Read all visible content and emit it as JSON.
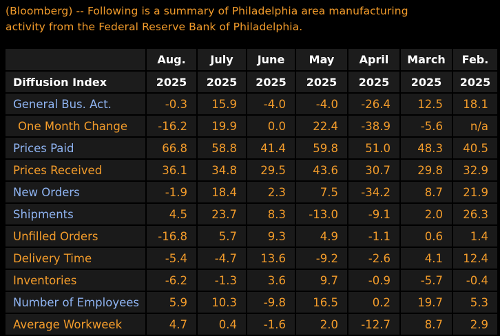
{
  "intro": {
    "line1": "(Bloomberg) -- Following is a summary of Philadelphia area manufacturing",
    "line2": "activity from the Federal Reserve Bank of Philadelphia."
  },
  "table": {
    "corner_label": "Diffusion Index",
    "columns": [
      {
        "month": "Aug.",
        "year": "2025"
      },
      {
        "month": "July",
        "year": "2025"
      },
      {
        "month": "June",
        "year": "2025"
      },
      {
        "month": "May",
        "year": "2025"
      },
      {
        "month": "April",
        "year": "2025"
      },
      {
        "month": "March",
        "year": "2025"
      },
      {
        "month": "Feb.",
        "year": "2025"
      }
    ],
    "rows": [
      {
        "label": "General Bus. Act.",
        "label_color": "#8fb4f2",
        "values": [
          "-0.3",
          "15.9",
          "-4.0",
          "-4.0",
          "-26.4",
          "12.5",
          "18.1"
        ]
      },
      {
        "label": "One Month Change",
        "label_color": "#f39c2b",
        "values": [
          "-16.2",
          "19.9",
          "0.0",
          "22.4",
          "-38.9",
          "-5.6",
          "n/a"
        ]
      },
      {
        "label": "Prices Paid",
        "label_color": "#8fb4f2",
        "values": [
          "66.8",
          "58.8",
          "41.4",
          "59.8",
          "51.0",
          "48.3",
          "40.5"
        ]
      },
      {
        "label": "Prices Received",
        "label_color": "#f39c2b",
        "values": [
          "36.1",
          "34.8",
          "29.5",
          "43.6",
          "30.7",
          "29.8",
          "32.9"
        ]
      },
      {
        "label": "New Orders",
        "label_color": "#8fb4f2",
        "values": [
          "-1.9",
          "18.4",
          "2.3",
          "7.5",
          "-34.2",
          "8.7",
          "21.9"
        ]
      },
      {
        "label": "Shipments",
        "label_color": "#8fb4f2",
        "values": [
          "4.5",
          "23.7",
          "8.3",
          "-13.0",
          "-9.1",
          "2.0",
          "26.3"
        ]
      },
      {
        "label": "Unfilled Orders",
        "label_color": "#f39c2b",
        "values": [
          "-16.8",
          "5.7",
          "9.3",
          "4.9",
          "-1.1",
          "0.6",
          "1.4"
        ]
      },
      {
        "label": "Delivery Time",
        "label_color": "#f39c2b",
        "values": [
          "-5.4",
          "-4.7",
          "13.6",
          "-9.2",
          "-2.6",
          "4.1",
          "12.4"
        ]
      },
      {
        "label": "Inventories",
        "label_color": "#f39c2b",
        "values": [
          "-6.2",
          "-1.3",
          "3.6",
          "9.7",
          "-0.9",
          "-5.7",
          "-0.4"
        ]
      },
      {
        "label": "Number of Employees",
        "label_color": "#8fb4f2",
        "values": [
          "5.9",
          "10.3",
          "-9.8",
          "16.5",
          "0.2",
          "19.7",
          "5.3"
        ]
      },
      {
        "label": "Average Workweek",
        "label_color": "#f39c2b",
        "values": [
          "4.7",
          "0.4",
          "-1.6",
          "2.0",
          "-12.7",
          "8.7",
          "2.9"
        ]
      }
    ]
  },
  "colors": {
    "background": "#000000",
    "text_orange": "#f39c2b",
    "link_blue": "#8fb4f2",
    "header_text": "#ffffff",
    "cell_background": "#1a1a1a"
  }
}
